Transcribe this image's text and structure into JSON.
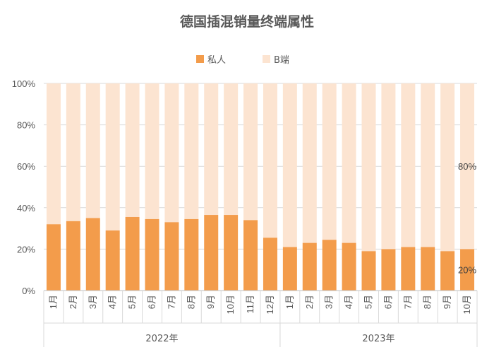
{
  "chart_data": {
    "type": "bar",
    "stacked": true,
    "title": "德国插混销量终端属性",
    "legend": [
      "私人",
      "B端"
    ],
    "legend_position": "top",
    "colors": {
      "private": "#f39c4b",
      "b2b": "#fce4d1"
    },
    "y_ticks": [
      "0%",
      "20%",
      "40%",
      "60%",
      "80%",
      "100%"
    ],
    "ylim": [
      0,
      100
    ],
    "groups": [
      {
        "label": "2022年",
        "months": [
          "1月",
          "2月",
          "3月",
          "4月",
          "5月",
          "6月",
          "7月",
          "8月",
          "9月",
          "10月",
          "11月",
          "12月"
        ]
      },
      {
        "label": "2023年",
        "months": [
          "1月",
          "2月",
          "3月",
          "4月",
          "5月",
          "6月",
          "7月",
          "8月",
          "9月",
          "10月"
        ]
      }
    ],
    "series": [
      {
        "name": "私人",
        "values": [
          32,
          33.5,
          35,
          29,
          35.5,
          34.5,
          33,
          34.5,
          36.5,
          36.5,
          34,
          25.5,
          21,
          23,
          24.5,
          23,
          19,
          20,
          21,
          21,
          19,
          20
        ]
      },
      {
        "name": "B端",
        "values": [
          68,
          66.5,
          65,
          71,
          64.5,
          65.5,
          67,
          65.5,
          63.5,
          63.5,
          66,
          74.5,
          79,
          77,
          75.5,
          77,
          81,
          80,
          79,
          79,
          81,
          80
        ]
      }
    ],
    "annotations": [
      {
        "text": "80%",
        "series": "B端",
        "index": 21
      },
      {
        "text": "20%",
        "series": "私人",
        "index": 21
      }
    ]
  }
}
